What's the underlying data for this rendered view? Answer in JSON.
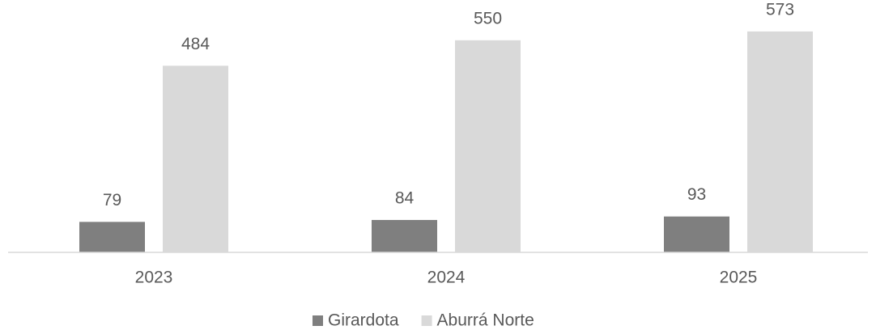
{
  "chart_data": {
    "type": "bar",
    "categories": [
      "2023",
      "2024",
      "2025"
    ],
    "series": [
      {
        "name": "Girardota",
        "color": "#7f7f7f",
        "values": [
          79,
          84,
          93
        ]
      },
      {
        "name": "Aburrá Norte",
        "color": "#d9d9d9",
        "values": [
          484,
          550,
          573
        ]
      }
    ],
    "ylim": [
      0,
      600
    ],
    "legend": "bottom"
  }
}
